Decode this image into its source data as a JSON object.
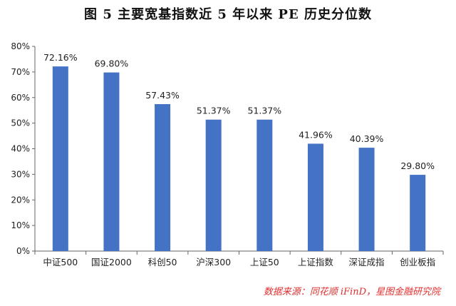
{
  "figure": {
    "title": "图 5   主要宽基指数近 5 年以来 PE 历史分位数",
    "source": "数据来源：同花顺 iFinD，星图金融研究院"
  },
  "chart_data": {
    "type": "bar",
    "categories": [
      "中证500",
      "国证2000",
      "科创50",
      "沪深300",
      "上证50",
      "上证指数",
      "深证成指",
      "创业板指"
    ],
    "values": [
      72.16,
      69.8,
      57.43,
      51.37,
      51.37,
      41.96,
      40.39,
      29.8
    ],
    "data_labels": [
      "72.16%",
      "69.80%",
      "57.43%",
      "51.37%",
      "51.37%",
      "41.96%",
      "40.39%",
      "29.80%"
    ],
    "yticks": [
      "0%",
      "10%",
      "20%",
      "30%",
      "40%",
      "50%",
      "60%",
      "70%",
      "80%"
    ],
    "ylim": [
      0,
      80
    ],
    "bar_color": "#4472C4",
    "grid": false,
    "legend": "none"
  }
}
